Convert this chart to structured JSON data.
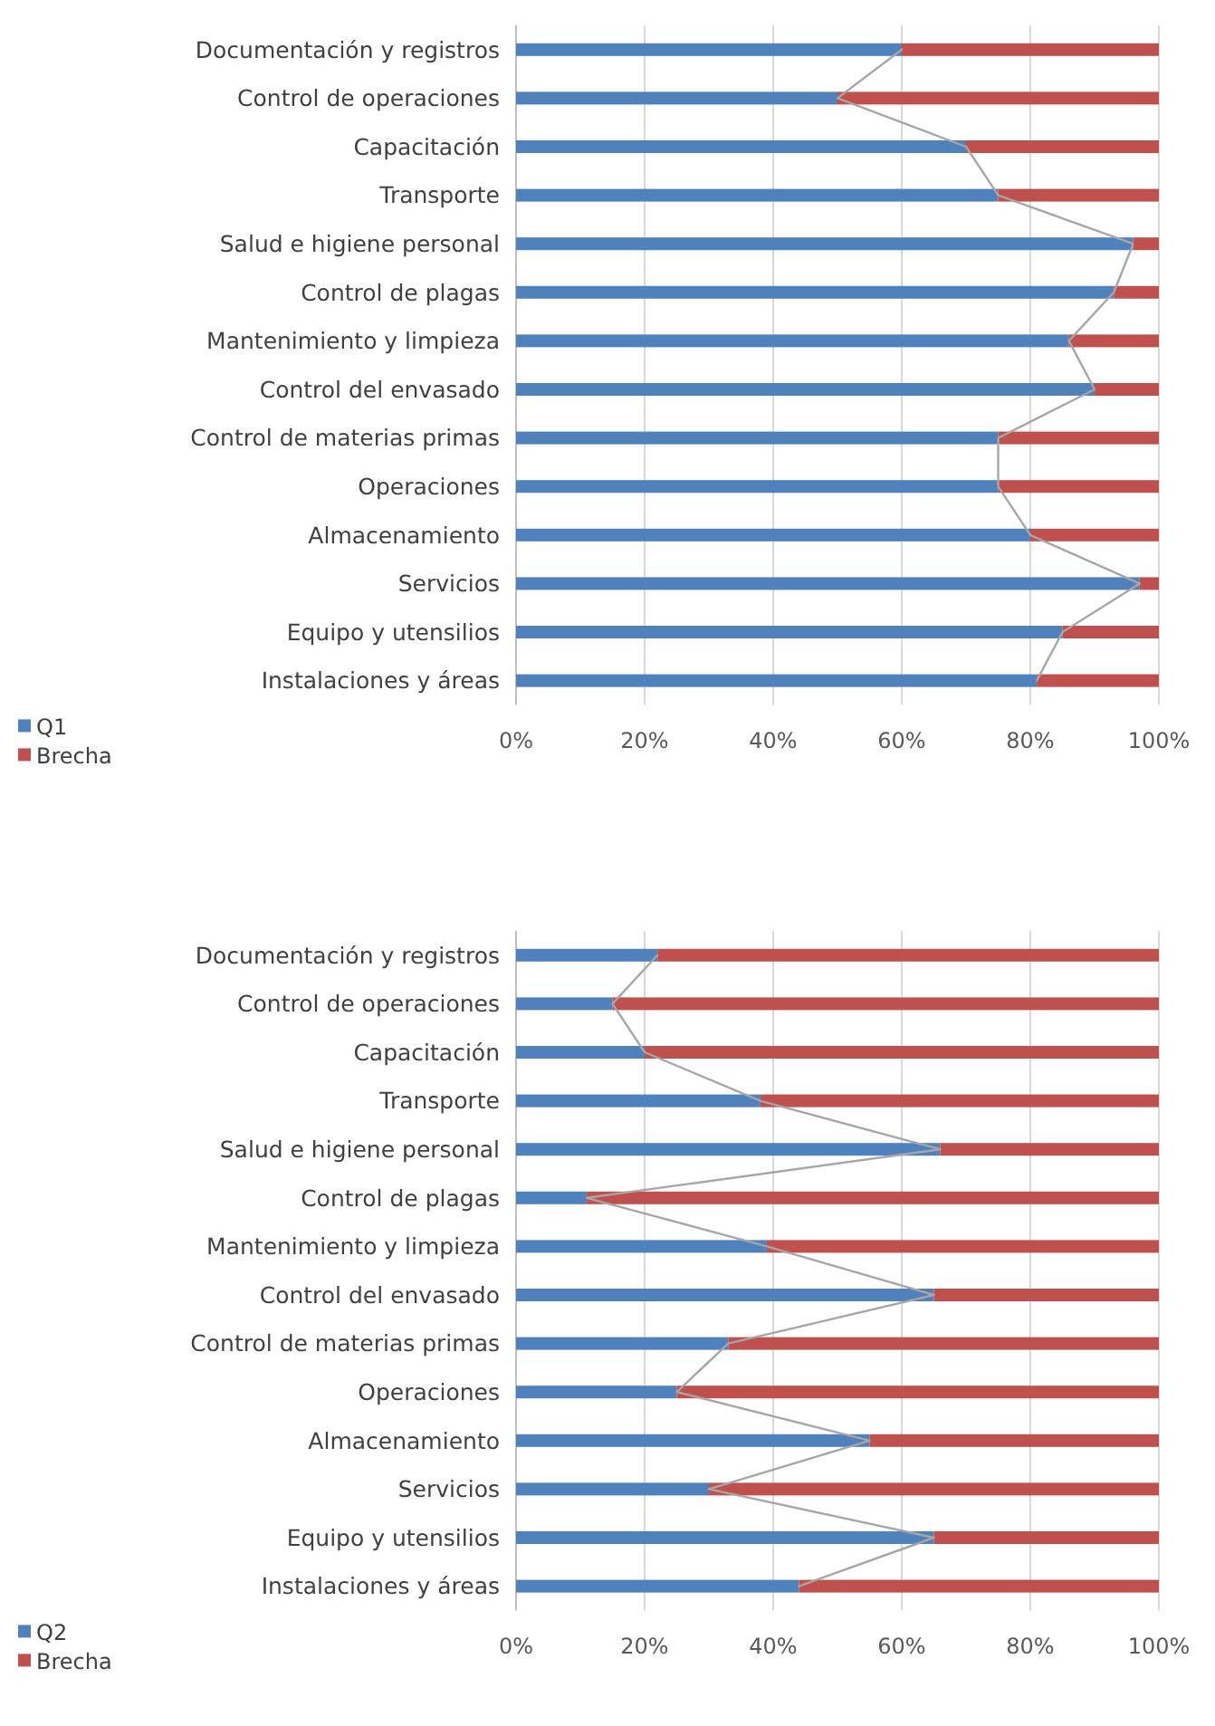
{
  "chart_data": [
    {
      "type": "bar",
      "orientation": "horizontal",
      "stacked": true,
      "grid": "x",
      "legend": "bottom left",
      "categories": [
        "Documentación y registros",
        "Control de operaciones",
        "Capacitación",
        "Transporte",
        "Salud e higiene personal",
        "Control de plagas",
        "Mantenimiento y limpieza",
        "Control del envasado",
        "Control de materias primas",
        "Operaciones",
        "Almacenamiento",
        "Servicios",
        "Equipo y utensilios",
        "Instalaciones y áreas"
      ],
      "series": [
        {
          "name": "Q1",
          "color": "#4f81bd",
          "values": [
            60,
            50,
            70,
            75,
            96,
            93,
            86,
            90,
            75,
            75,
            80,
            97,
            85,
            81
          ]
        },
        {
          "name": "Brecha",
          "color": "#c0504d",
          "values": [
            40,
            50,
            30,
            25,
            4,
            7,
            14,
            10,
            25,
            25,
            20,
            3,
            15,
            19
          ]
        },
        {
          "type": "line",
          "color": "#a6a6a6",
          "values": [
            60,
            50,
            70,
            75,
            96,
            93,
            86,
            90,
            75,
            75,
            80,
            97,
            85,
            81
          ]
        }
      ],
      "xlim": [
        0,
        100
      ],
      "xticks": [
        {
          "value": 0,
          "label": "0%"
        },
        {
          "value": 20,
          "label": "20%"
        },
        {
          "value": 40,
          "label": "40%"
        },
        {
          "value": 60,
          "label": "60%"
        },
        {
          "value": 80,
          "label": "80%"
        },
        {
          "value": 100,
          "label": "100%"
        }
      ]
    },
    {
      "type": "bar",
      "orientation": "horizontal",
      "stacked": true,
      "grid": "x",
      "legend": "bottom left",
      "categories": [
        "Documentación y registros",
        "Control de operaciones",
        "Capacitación",
        "Transporte",
        "Salud e higiene personal",
        "Control de plagas",
        "Mantenimiento y limpieza",
        "Control del envasado",
        "Control de materias primas",
        "Operaciones",
        "Almacenamiento",
        "Servicios",
        "Equipo y utensilios",
        "Instalaciones y áreas"
      ],
      "series": [
        {
          "name": "Q2",
          "color": "#4f81bd",
          "values": [
            22,
            15,
            20,
            38,
            66,
            11,
            39,
            65,
            33,
            25,
            55,
            30,
            65,
            44
          ]
        },
        {
          "name": "Brecha",
          "color": "#c0504d",
          "values": [
            78,
            85,
            80,
            62,
            34,
            89,
            61,
            35,
            67,
            75,
            45,
            70,
            35,
            56
          ]
        },
        {
          "type": "line",
          "color": "#a6a6a6",
          "values": [
            22,
            15,
            20,
            38,
            66,
            11,
            39,
            65,
            33,
            25,
            55,
            30,
            65,
            44
          ]
        }
      ],
      "xlim": [
        0,
        100
      ],
      "xticks": [
        {
          "value": 0,
          "label": "0%"
        },
        {
          "value": 20,
          "label": "20%"
        },
        {
          "value": 40,
          "label": "40%"
        },
        {
          "value": 60,
          "label": "60%"
        },
        {
          "value": 80,
          "label": "80%"
        },
        {
          "value": 100,
          "label": "100%"
        }
      ]
    }
  ]
}
